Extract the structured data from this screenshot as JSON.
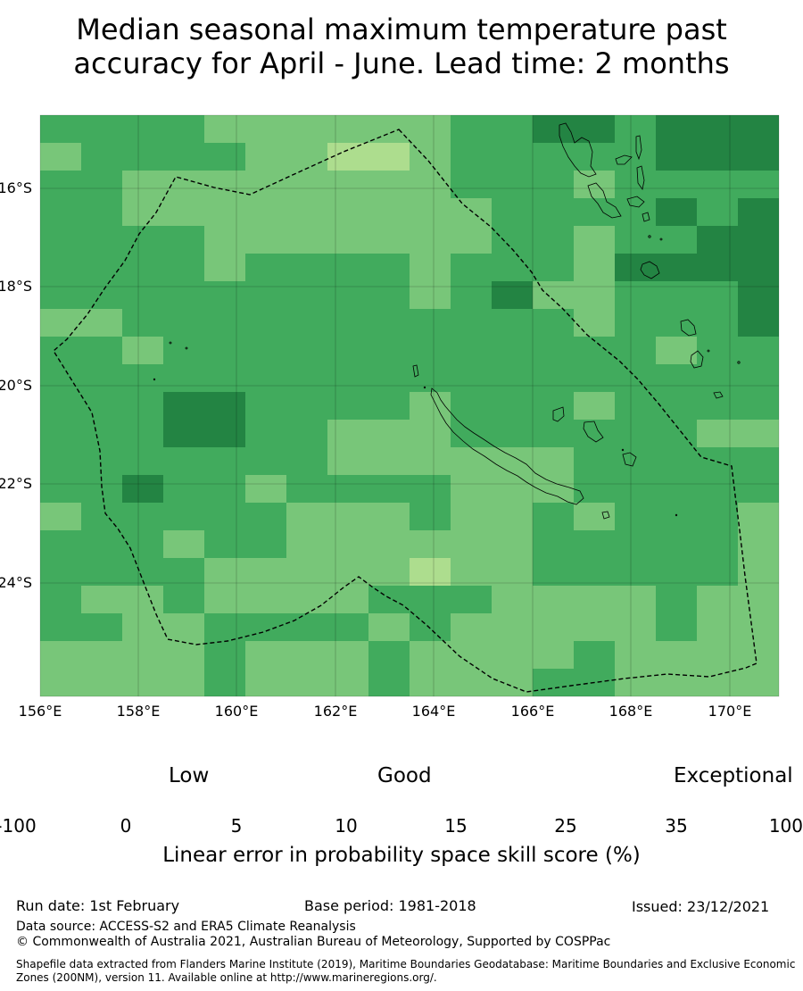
{
  "title": {
    "line1": "Median seasonal maximum temperature past",
    "line2": "accuracy for April - June. Lead time: 2 months"
  },
  "map": {
    "lat_ticks": [
      "16°S",
      "18°S",
      "20°S",
      "22°S",
      "24°S"
    ],
    "lon_ticks": [
      "156°E",
      "158°E",
      "160°E",
      "162°E",
      "164°E",
      "166°E",
      "168°E",
      "170°E"
    ],
    "lon_range": [
      155.8,
      171.0
    ],
    "lat_range": [
      -26.4,
      -14.6
    ],
    "grid_on": true,
    "eez_boundary": "dashed"
  },
  "colorbar": {
    "categories": [
      "Low",
      "Good",
      "Exceptional"
    ],
    "ticks": [
      "-100",
      "0",
      "5",
      "10",
      "15",
      "25",
      "35",
      "100"
    ],
    "colors": [
      "#ffffff",
      "#ffffcc",
      "#d9f0a3",
      "#addd8e",
      "#78c679",
      "#41ab5d",
      "#238443"
    ],
    "title": "Linear error in probability space skill score (%)"
  },
  "footer": {
    "run_date": "Run date: 1st February",
    "base_period": "Base period: 1981-2018",
    "issued": "Issued: 23/12/2021",
    "data_source": "Data source: ACCESS-S2 and ERA5 Climate Reanalysis",
    "copyright": "© Commonwealth of Australia 2021, Australian Bureau of Meteorology, Supported by COSPPac",
    "shapefile": "Shapefile data extracted from Flanders Marine Institute (2019), Maritime Boundaries Geodatabase: Maritime Boundaries and Exclusive Economic Zones (200NM), version 11. Available online at http://www.marineregions.org/."
  }
}
